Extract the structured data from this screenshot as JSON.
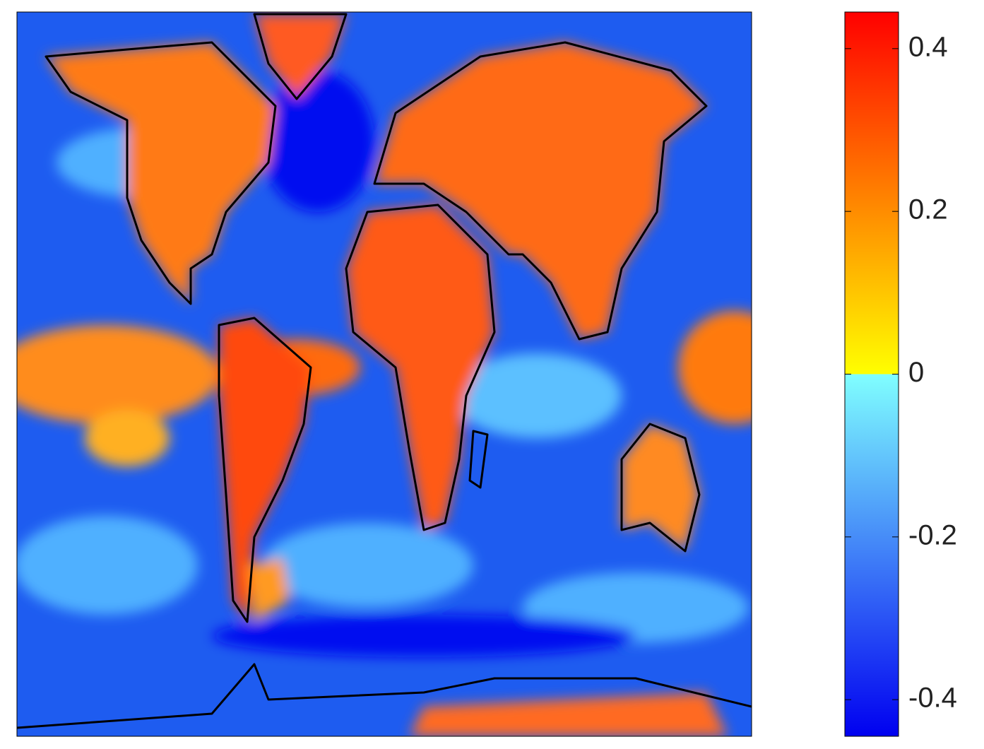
{
  "chart_data": {
    "type": "colorbar",
    "clim": [
      -0.445,
      0.445
    ],
    "cticks": [
      -0.4,
      -0.2,
      0,
      0.2,
      0.4
    ],
    "colormap": {
      "negative": [
        "#0000f0",
        "#80ffff"
      ],
      "positive": [
        "#ffff00",
        "#ff0000"
      ]
    }
  }
}
